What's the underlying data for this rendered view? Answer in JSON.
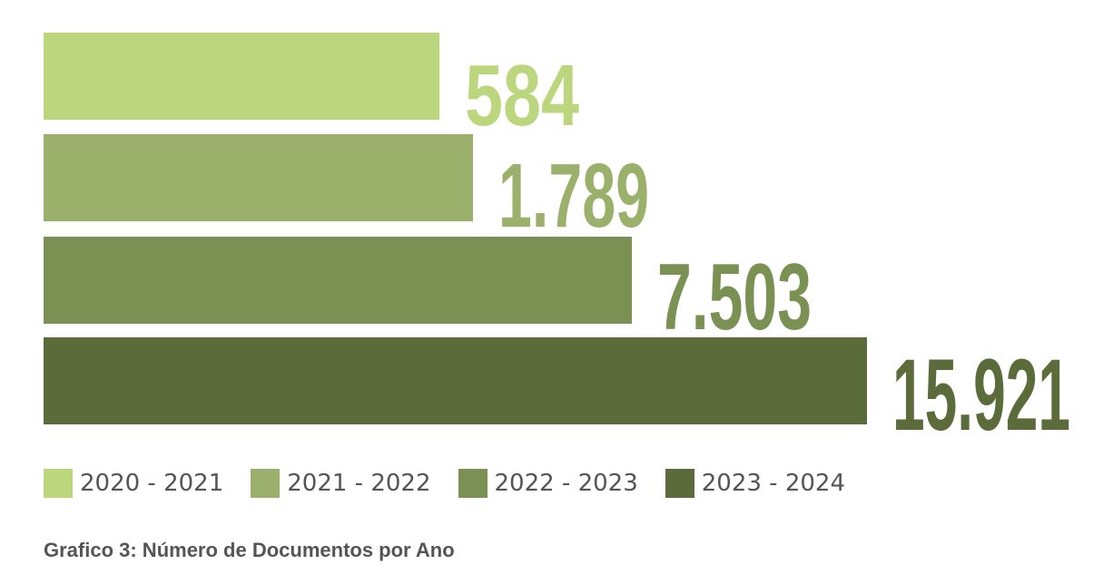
{
  "chart_data": {
    "type": "bar",
    "orientation": "horizontal",
    "categories": [
      "2020 - 2021",
      "2021 - 2022",
      "2022 - 2023",
      "2023 - 2024"
    ],
    "values": [
      584,
      1789,
      7503,
      15921
    ],
    "value_labels": [
      "584",
      "1.789",
      "7.503",
      "15.921"
    ],
    "colors": [
      "#bcd67e",
      "#9bb06a",
      "#7a9153",
      "#5b6b3a"
    ],
    "legend": [
      "2020 - 2021",
      "2021 - 2022",
      "2022 - 2023",
      "2023 - 2024"
    ],
    "legend_position": "bottom",
    "grid": false,
    "axes_visible": false,
    "title": "",
    "xlabel": "",
    "ylabel": ""
  },
  "caption": "Grafico 3: Número de Documentos por Ano"
}
